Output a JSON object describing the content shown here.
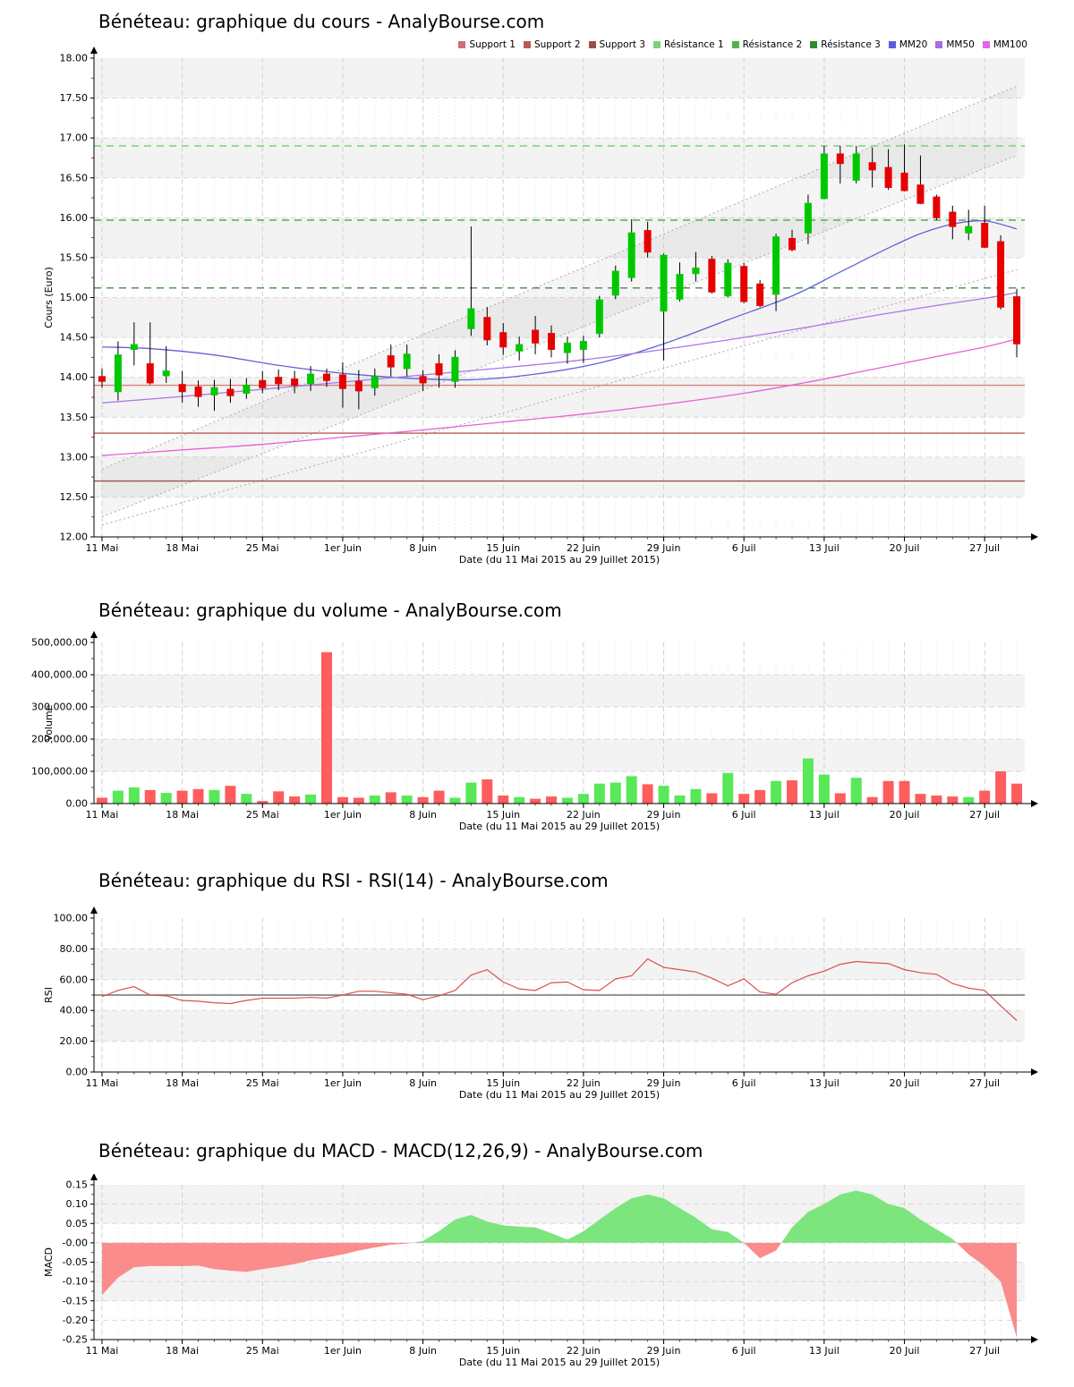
{
  "page": {
    "background": "#ffffff"
  },
  "legend": {
    "items": [
      {
        "label": "Support 1",
        "color": "#cd6f6f"
      },
      {
        "label": "Support 2",
        "color": "#b85a5a"
      },
      {
        "label": "Support 3",
        "color": "#9c4f4f"
      },
      {
        "label": "Résistance 1",
        "color": "#7ad47a"
      },
      {
        "label": "Résistance 2",
        "color": "#4eb54e"
      },
      {
        "label": "Résistance 3",
        "color": "#2e8b2e"
      },
      {
        "label": "MM20",
        "color": "#5c5cdb"
      },
      {
        "label": "MM50",
        "color": "#a66ede"
      },
      {
        "label": "MM100",
        "color": "#e565e5"
      }
    ]
  },
  "axis": {
    "tick_labels": [
      "11 Mai",
      "18 Mai",
      "25 Mai",
      "1er Juin",
      "8 Juin",
      "15 Juin",
      "22 Juin",
      "29 Juin",
      "6 Juil",
      "13 Juil",
      "20 Juil",
      "27 Juil"
    ],
    "tick_days": [
      0,
      5,
      10,
      15,
      20,
      25,
      30,
      35,
      40,
      45,
      50,
      55
    ],
    "n_days": 58,
    "xlabel": "Date (du 11 Mai 2015 au 29 Juillet 2015)"
  },
  "chart_data": [
    {
      "type": "candlestick",
      "title": "Bénéteau: graphique du cours - AnalyBourse.com",
      "ylabel": "Cours (Euro)",
      "xlabel": "Date (du 11 Mai 2015 au 29 Juillet 2015)",
      "ylim": [
        12.0,
        18.0
      ],
      "ytick_step": 0.5,
      "grid": true,
      "legend_position": "top-right",
      "up_color": "#00c800",
      "down_color": "#e60000",
      "ohlc": [
        [
          14.01,
          14.11,
          13.87,
          13.95
        ],
        [
          13.82,
          14.45,
          13.71,
          14.28
        ],
        [
          14.35,
          14.69,
          14.15,
          14.41
        ],
        [
          14.17,
          14.69,
          13.91,
          13.93
        ],
        [
          14.02,
          14.39,
          13.93,
          14.08
        ],
        [
          13.91,
          14.08,
          13.68,
          13.82
        ],
        [
          13.88,
          13.96,
          13.63,
          13.76
        ],
        [
          13.78,
          13.97,
          13.58,
          13.87
        ],
        [
          13.85,
          13.98,
          13.68,
          13.77
        ],
        [
          13.8,
          13.99,
          13.73,
          13.9
        ],
        [
          13.96,
          14.08,
          13.8,
          13.87
        ],
        [
          14.0,
          14.1,
          13.84,
          13.92
        ],
        [
          13.98,
          14.08,
          13.8,
          13.9
        ],
        [
          13.92,
          14.14,
          13.83,
          14.04
        ],
        [
          14.04,
          14.11,
          13.88,
          13.96
        ],
        [
          14.03,
          14.19,
          13.62,
          13.86
        ],
        [
          13.95,
          14.09,
          13.6,
          13.83
        ],
        [
          13.87,
          14.11,
          13.77,
          14.01
        ],
        [
          14.27,
          14.41,
          14.01,
          14.13
        ],
        [
          14.11,
          14.41,
          14.01,
          14.29
        ],
        [
          14.01,
          14.09,
          13.83,
          13.93
        ],
        [
          14.17,
          14.29,
          13.87,
          14.03
        ],
        [
          13.95,
          14.34,
          13.87,
          14.25
        ],
        [
          14.61,
          15.89,
          14.52,
          14.86
        ],
        [
          14.75,
          14.88,
          14.4,
          14.47
        ],
        [
          14.56,
          14.68,
          14.28,
          14.38
        ],
        [
          14.33,
          14.51,
          14.21,
          14.41
        ],
        [
          14.59,
          14.77,
          14.29,
          14.43
        ],
        [
          14.55,
          14.65,
          14.25,
          14.35
        ],
        [
          14.31,
          14.51,
          14.17,
          14.43
        ],
        [
          14.35,
          14.52,
          14.18,
          14.45
        ],
        [
          14.55,
          15.02,
          14.5,
          14.97
        ],
        [
          15.03,
          15.4,
          14.98,
          15.33
        ],
        [
          15.25,
          15.98,
          15.2,
          15.81
        ],
        [
          15.84,
          15.95,
          15.5,
          15.57
        ],
        [
          14.83,
          15.55,
          14.21,
          15.53
        ],
        [
          14.98,
          15.44,
          14.95,
          15.29
        ],
        [
          15.3,
          15.57,
          15.2,
          15.37
        ],
        [
          15.48,
          15.52,
          15.05,
          15.07
        ],
        [
          15.02,
          15.48,
          15.0,
          15.43
        ],
        [
          15.39,
          15.43,
          14.93,
          14.95
        ],
        [
          15.17,
          15.22,
          14.88,
          14.9
        ],
        [
          15.04,
          15.8,
          14.83,
          15.76
        ],
        [
          15.74,
          15.85,
          15.58,
          15.6
        ],
        [
          15.81,
          16.29,
          15.67,
          16.18
        ],
        [
          16.24,
          16.9,
          16.23,
          16.8
        ],
        [
          16.8,
          16.9,
          16.43,
          16.68
        ],
        [
          16.47,
          16.9,
          16.43,
          16.8
        ],
        [
          16.69,
          16.88,
          16.38,
          16.6
        ],
        [
          16.63,
          16.86,
          16.35,
          16.38
        ],
        [
          16.56,
          16.92,
          16.33,
          16.34
        ],
        [
          16.41,
          16.78,
          16.17,
          16.18
        ],
        [
          16.26,
          16.29,
          15.97,
          16.0
        ],
        [
          16.07,
          16.15,
          15.73,
          15.89
        ],
        [
          15.81,
          16.1,
          15.72,
          15.89
        ],
        [
          15.93,
          16.15,
          15.62,
          15.63
        ],
        [
          15.7,
          15.78,
          14.85,
          14.88
        ],
        [
          15.01,
          15.11,
          14.25,
          14.42
        ]
      ],
      "resistances": [
        {
          "label": "Résistance 1",
          "value": 16.9,
          "color": "#6fcf6f"
        },
        {
          "label": "Résistance 2",
          "value": 15.97,
          "color": "#52b052"
        },
        {
          "label": "Résistance 3",
          "value": 15.12,
          "color": "#3f8f3f"
        }
      ],
      "supports": [
        {
          "label": "Support 1",
          "value": 13.9,
          "color": "#d98080"
        },
        {
          "label": "Support 2",
          "value": 13.3,
          "color": "#b85a5a"
        },
        {
          "label": "Support 3",
          "value": 12.7,
          "color": "#9c4f4f"
        }
      ],
      "moving_averages": [
        {
          "name": "MM20",
          "color": "#6262d8",
          "points": [
            [
              0,
              14.38
            ],
            [
              3,
              14.36
            ],
            [
              7,
              14.28
            ],
            [
              11,
              14.15
            ],
            [
              15,
              14.05
            ],
            [
              19,
              13.99
            ],
            [
              23,
              13.97
            ],
            [
              27,
              14.04
            ],
            [
              31,
              14.18
            ],
            [
              35,
              14.42
            ],
            [
              39,
              14.72
            ],
            [
              43,
              15.02
            ],
            [
              46,
              15.32
            ],
            [
              49,
              15.62
            ],
            [
              51,
              15.8
            ],
            [
              53,
              15.92
            ],
            [
              55,
              15.96
            ],
            [
              57,
              15.86
            ]
          ]
        },
        {
          "name": "MM50",
          "color": "#aa77e8",
          "points": [
            [
              0,
              13.68
            ],
            [
              5,
              13.76
            ],
            [
              10,
              13.85
            ],
            [
              15,
              13.94
            ],
            [
              20,
              14.03
            ],
            [
              25,
              14.12
            ],
            [
              30,
              14.22
            ],
            [
              35,
              14.35
            ],
            [
              40,
              14.5
            ],
            [
              44,
              14.63
            ],
            [
              48,
              14.77
            ],
            [
              52,
              14.9
            ],
            [
              55,
              14.99
            ],
            [
              57,
              15.06
            ]
          ]
        },
        {
          "name": "MM100",
          "color": "#ea5fd5",
          "points": [
            [
              0,
              13.02
            ],
            [
              5,
              13.09
            ],
            [
              10,
              13.16
            ],
            [
              15,
              13.25
            ],
            [
              20,
              13.34
            ],
            [
              25,
              13.44
            ],
            [
              30,
              13.54
            ],
            [
              35,
              13.66
            ],
            [
              40,
              13.8
            ],
            [
              44,
              13.94
            ],
            [
              48,
              14.1
            ],
            [
              52,
              14.26
            ],
            [
              55,
              14.38
            ],
            [
              57,
              14.48
            ]
          ]
        }
      ],
      "trend_channel": {
        "lines": [
          [
            0,
            12.85,
            57,
            17.65
          ],
          [
            0,
            12.25,
            57,
            16.78
          ],
          [
            0,
            12.15,
            57,
            15.35
          ]
        ],
        "fill_between": [
          0,
          1
        ]
      }
    },
    {
      "type": "bar",
      "title": "Bénéteau: graphique du volume - AnalyBourse.com",
      "ylabel": "Volume",
      "xlabel": "Date (du 11 Mai 2015 au 29 Juillet 2015)",
      "ylim": [
        0,
        500000
      ],
      "ytick_step": 100000,
      "up_color": "#58e858",
      "down_color": "#ff5c5c",
      "values": [
        18000,
        40000,
        50000,
        42000,
        33000,
        40000,
        45000,
        42000,
        55000,
        30000,
        8000,
        38000,
        22000,
        28000,
        470000,
        20000,
        18000,
        25000,
        35000,
        25000,
        20000,
        40000,
        18000,
        65000,
        75000,
        25000,
        20000,
        15000,
        22000,
        18000,
        30000,
        62000,
        65000,
        85000,
        60000,
        55000,
        25000,
        45000,
        32000,
        95000,
        30000,
        42000,
        70000,
        72000,
        140000,
        90000,
        32000,
        80000,
        20000,
        70000,
        70000,
        30000,
        25000,
        22000,
        20000,
        40000,
        100000,
        62000
      ]
    },
    {
      "type": "line",
      "title": "Bénéteau: graphique du RSI - RSI(14) - AnalyBourse.com",
      "ylabel": "RSI",
      "xlabel": "Date (du 11 Mai 2015 au 29 Juillet 2015)",
      "ylim": [
        0,
        100
      ],
      "ytick_step": 20,
      "line_color": "#d94f4f",
      "midline": {
        "value": 50,
        "color": "#707070"
      },
      "values": [
        49,
        53,
        55.5,
        50,
        49.5,
        46.5,
        46,
        45,
        44.5,
        46.5,
        48,
        48,
        48,
        48.5,
        48,
        50,
        52.5,
        52.5,
        51.5,
        50.5,
        47,
        49.5,
        53,
        63,
        66.5,
        58.5,
        54,
        53,
        58,
        58.5,
        53.5,
        53,
        60.5,
        62.5,
        73.5,
        68,
        66.5,
        65,
        61,
        56,
        60.5,
        52,
        50.5,
        58,
        62.5,
        65.5,
        70,
        71.8,
        71,
        70.5,
        66.5,
        64.5,
        63.5,
        57.5,
        54.5,
        53,
        43,
        33.5
      ]
    },
    {
      "type": "area",
      "title": "Bénéteau: graphique du MACD - MACD(12,26,9) - AnalyBourse.com",
      "ylabel": "MACD",
      "xlabel": "Date (du 11 Mai 2015 au 29 Juillet 2015)",
      "ylim": [
        -0.25,
        0.15
      ],
      "ytick_step": 0.05,
      "positive_color": "#7de57d",
      "negative_color": "#fb8c8c",
      "values": [
        -0.135,
        -0.09,
        -0.063,
        -0.06,
        -0.06,
        -0.06,
        -0.059,
        -0.068,
        -0.072,
        -0.075,
        -0.068,
        -0.062,
        -0.055,
        -0.045,
        -0.038,
        -0.03,
        -0.02,
        -0.012,
        -0.005,
        -0.002,
        0.005,
        0.03,
        0.06,
        0.072,
        0.055,
        0.045,
        0.042,
        0.04,
        0.025,
        0.008,
        0.03,
        0.06,
        0.09,
        0.115,
        0.125,
        0.115,
        0.09,
        0.065,
        0.035,
        0.028,
        0.0,
        -0.04,
        -0.02,
        0.04,
        0.08,
        0.1,
        0.125,
        0.135,
        0.125,
        0.1,
        0.09,
        0.06,
        0.035,
        0.01,
        -0.03,
        -0.06,
        -0.1,
        -0.245
      ]
    }
  ]
}
